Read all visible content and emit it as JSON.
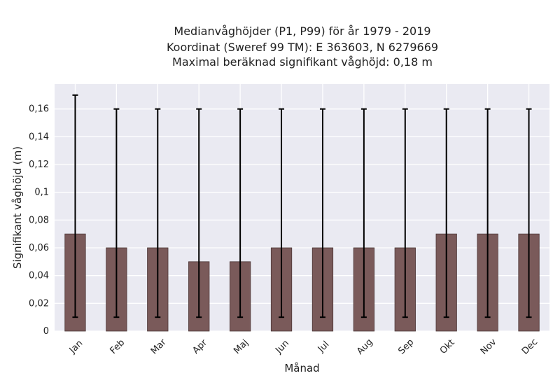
{
  "chart_data": {
    "type": "bar",
    "title_lines": [
      "Medianvåghöjder (P1, P99) för år 1979 - 2019",
      "Koordinat (Sweref 99 TM): E 363603, N 6279669",
      "Maximal beräknad signifikant våghöjd: 0,18 m"
    ],
    "xlabel": "Månad",
    "ylabel": "Signifikant våghöjd (m)",
    "categories": [
      "Jan",
      "Feb",
      "Mar",
      "Apr",
      "Maj",
      "Jun",
      "Jul",
      "Aug",
      "Sep",
      "Okt",
      "Nov",
      "Dec"
    ],
    "values": [
      0.07,
      0.06,
      0.06,
      0.05,
      0.05,
      0.06,
      0.06,
      0.06,
      0.06,
      0.07,
      0.07,
      0.07
    ],
    "error_low": [
      0.01,
      0.01,
      0.01,
      0.01,
      0.01,
      0.01,
      0.01,
      0.01,
      0.01,
      0.01,
      0.01,
      0.01
    ],
    "error_high": [
      0.17,
      0.16,
      0.16,
      0.16,
      0.16,
      0.16,
      0.16,
      0.16,
      0.16,
      0.16,
      0.16,
      0.16
    ],
    "yticks": [
      0,
      0.02,
      0.04,
      0.06,
      0.08,
      0.1,
      0.12,
      0.14,
      0.16
    ],
    "ytick_labels": [
      "0",
      "0,02",
      "0,04",
      "0,06",
      "0,08",
      "0,1",
      "0,12",
      "0,14",
      "0,16"
    ],
    "ylim": [
      0,
      0.178
    ],
    "grid": true,
    "colors": {
      "bar": "#7a5a5a",
      "bar_edge": "#4a3535",
      "error": "#000000",
      "background": "#eaeaf2",
      "grid": "#ffffff"
    }
  }
}
